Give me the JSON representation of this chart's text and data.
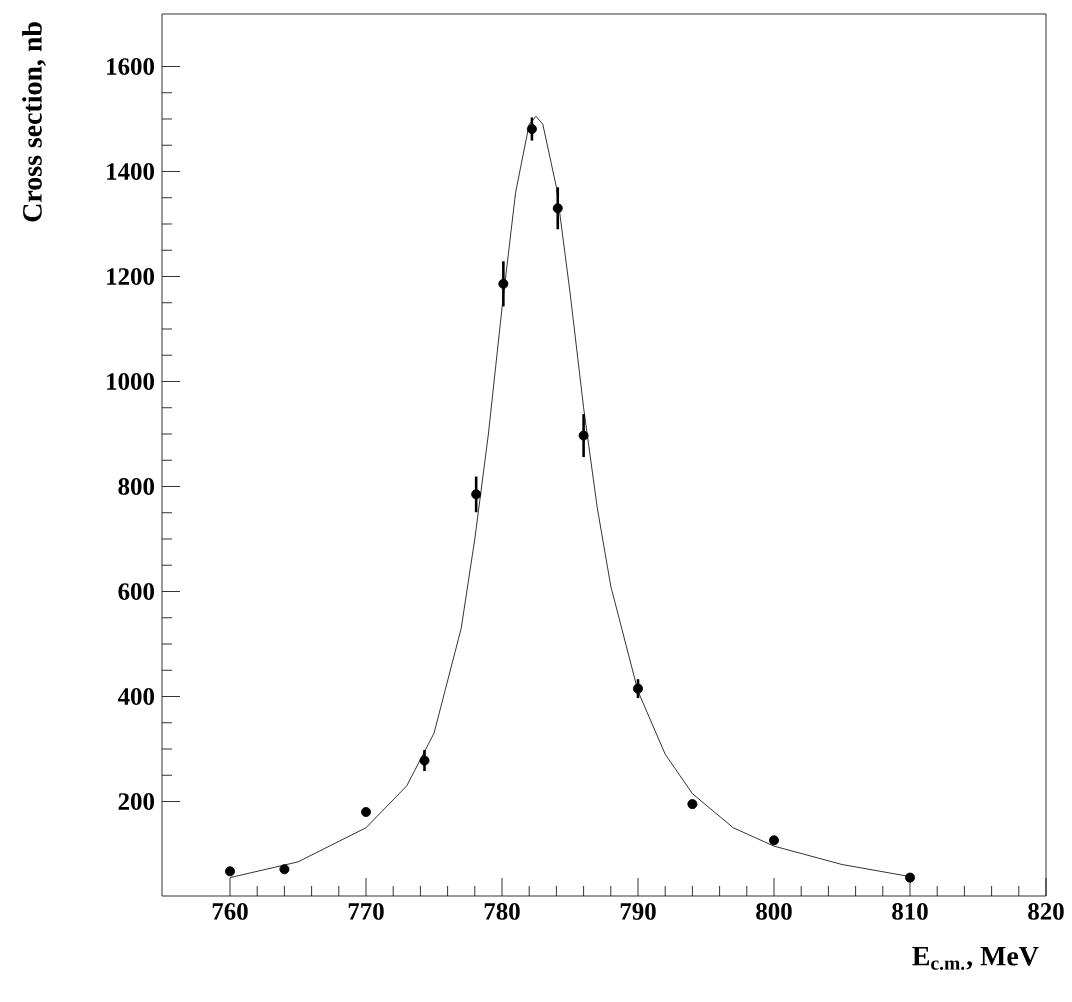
{
  "chart_data": {
    "type": "scatter",
    "xlabel": "E$_{c.m.}$, MeV",
    "ylabel": "Cross section, nb",
    "xlim": [
      755,
      820
    ],
    "ylim": [
      20,
      1700
    ],
    "xticks": [
      760,
      770,
      780,
      790,
      800,
      810,
      820
    ],
    "yticks": [
      200,
      400,
      600,
      800,
      1000,
      1200,
      1400,
      1600
    ],
    "series": [
      {
        "color": "#000000",
        "marker": "circle",
        "x": [
          760,
          764,
          770,
          774.3,
          778.1,
          780.1,
          782.2,
          784.1,
          786,
          790,
          794,
          800,
          810
        ],
        "values": [
          67,
          71,
          180,
          278,
          785,
          1186,
          1481,
          1330,
          897,
          415,
          195,
          126,
          55
        ],
        "errors": [
          null,
          null,
          null,
          20,
          34,
          43,
          22,
          40,
          41,
          18,
          null,
          null,
          null
        ]
      },
      {
        "type": "line",
        "color": "#000000",
        "marker": "none",
        "x": [
          760,
          765,
          770,
          773,
          775,
          777,
          778,
          779,
          780,
          781,
          782,
          782.5,
          783,
          784,
          785,
          786,
          787,
          788,
          790,
          792,
          794,
          797,
          800,
          805,
          810
        ],
        "values": [
          55,
          85,
          150,
          230,
          330,
          530,
          700,
          900,
          1140,
          1360,
          1490,
          1505,
          1490,
          1370,
          1170,
          950,
          760,
          610,
          410,
          290,
          215,
          150,
          115,
          80,
          57
        ]
      }
    ]
  }
}
